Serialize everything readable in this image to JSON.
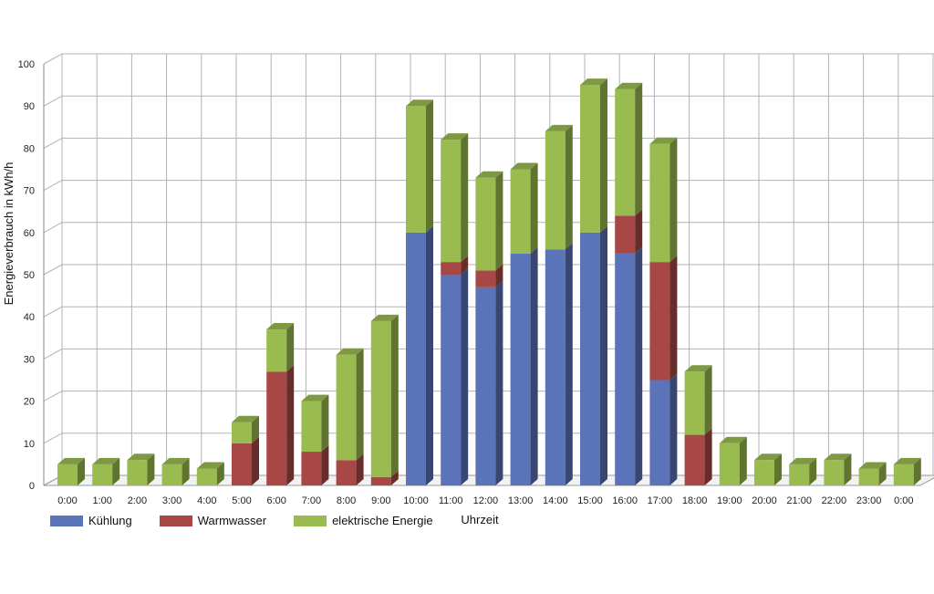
{
  "chart_data": {
    "type": "bar",
    "stacked": true,
    "three_d": true,
    "ylabel": "Energieverbrauch in kWh/h",
    "xlabel": "Uhrzeit",
    "ylim": [
      0,
      100
    ],
    "yticks": [
      0,
      10,
      20,
      30,
      40,
      50,
      60,
      70,
      80,
      90,
      100
    ],
    "grid": true,
    "legend_position": "bottom-left",
    "categories": [
      "0:00",
      "1:00",
      "2:00",
      "3:00",
      "4:00",
      "5:00",
      "6:00",
      "7:00",
      "8:00",
      "9:00",
      "10:00",
      "11:00",
      "12:00",
      "13:00",
      "14:00",
      "15:00",
      "16:00",
      "17:00",
      "18:00",
      "19:00",
      "20:00",
      "21:00",
      "22:00",
      "23:00",
      "0:00"
    ],
    "series": [
      {
        "name": "Kühlung",
        "color": "#5b73b8",
        "values": [
          0,
          0,
          0,
          0,
          0,
          0,
          0,
          0,
          0,
          0,
          60,
          50,
          47,
          55,
          56,
          60,
          55,
          25,
          0,
          0,
          0,
          0,
          0,
          0,
          0
        ]
      },
      {
        "name": "Warmwasser",
        "color": "#a84846",
        "values": [
          0,
          0,
          0,
          0,
          0,
          10,
          27,
          8,
          6,
          2,
          0,
          3,
          4,
          0,
          0,
          0,
          9,
          28,
          12,
          0,
          0,
          0,
          0,
          0,
          0
        ]
      },
      {
        "name": "elektrische Energie",
        "color": "#99bb4f",
        "values": [
          5,
          5,
          6,
          5,
          4,
          5,
          10,
          12,
          25,
          37,
          30,
          29,
          22,
          20,
          28,
          35,
          30,
          28,
          15,
          10,
          6,
          5,
          6,
          4,
          5
        ]
      }
    ]
  }
}
